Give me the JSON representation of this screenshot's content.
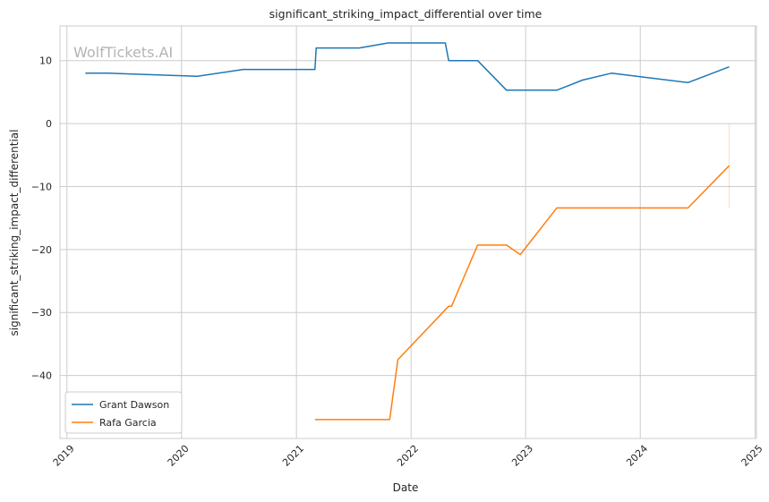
{
  "chart_data": {
    "type": "line",
    "title": "significant_striking_impact_differential over time",
    "xlabel": "Date",
    "ylabel": "significant_striking_impact_differential",
    "watermark": "WolfTickets.AI",
    "x_ticks": [
      "2019",
      "2020",
      "2021",
      "2022",
      "2023",
      "2024",
      "2025"
    ],
    "y_ticks": [
      10,
      0,
      -10,
      -20,
      -30,
      -40
    ],
    "y_tick_labels": [
      "10",
      "0",
      "−10",
      "−20",
      "−30",
      "−40"
    ],
    "xlim": [
      "2018-12-10",
      "2025-01-05"
    ],
    "ylim": [
      -50,
      15.5
    ],
    "grid": true,
    "legend_position": "lower-left",
    "series": [
      {
        "name": "Grant Dawson",
        "color": "#1f77b4",
        "points": [
          [
            "2019-03-01",
            8.0
          ],
          [
            "2019-05-15",
            8.0
          ],
          [
            "2020-02-20",
            7.5
          ],
          [
            "2020-07-15",
            8.6
          ],
          [
            "2021-03-01",
            8.6
          ],
          [
            "2021-03-05",
            12.0
          ],
          [
            "2021-07-20",
            12.0
          ],
          [
            "2021-10-20",
            12.8
          ],
          [
            "2022-04-20",
            12.8
          ],
          [
            "2022-05-01",
            10.0
          ],
          [
            "2022-08-01",
            10.0
          ],
          [
            "2022-11-01",
            5.3
          ],
          [
            "2023-04-10",
            5.3
          ],
          [
            "2023-07-01",
            6.9
          ],
          [
            "2023-10-01",
            8.0
          ],
          [
            "2024-06-01",
            6.5
          ],
          [
            "2024-10-10",
            9.0
          ]
        ]
      },
      {
        "name": "Rafa Garcia",
        "color": "#ff7f0e",
        "points": [
          [
            "2021-03-01",
            -47.0
          ],
          [
            "2021-10-25",
            -47.0
          ],
          [
            "2021-11-20",
            -37.5
          ],
          [
            "2022-05-01",
            -29.0
          ],
          [
            "2022-05-10",
            -29.0
          ],
          [
            "2022-08-01",
            -19.3
          ],
          [
            "2022-11-01",
            -19.3
          ],
          [
            "2022-12-15",
            -20.8
          ],
          [
            "2023-04-10",
            -13.4
          ],
          [
            "2024-06-01",
            -13.4
          ],
          [
            "2024-10-10",
            -6.7
          ]
        ],
        "error_band": {
          "x": "2024-10-10",
          "low": -13.4,
          "high": 0.0
        }
      }
    ]
  }
}
